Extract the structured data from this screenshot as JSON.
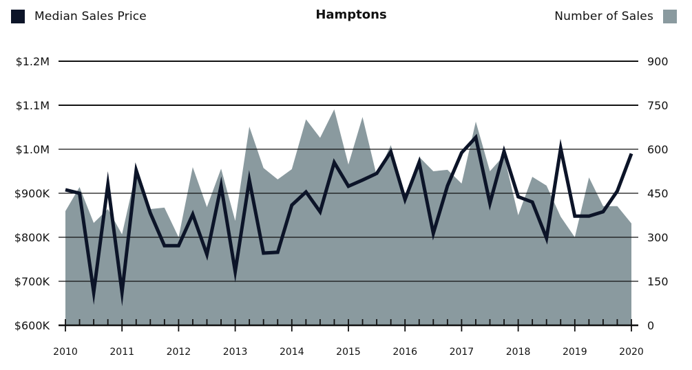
{
  "chart_data": {
    "type": "line+area",
    "title": "Hamptons",
    "xlabel": "",
    "ylabel_left": "Median Sales Price",
    "ylabel_right": "Number of Sales",
    "legend": [
      {
        "label": "Median Sales Price",
        "color": "#0c1428",
        "type": "line"
      },
      {
        "label": "Number of Sales",
        "color": "#8a9a9f",
        "type": "area"
      }
    ],
    "legend_position": "top",
    "grid": true,
    "y_left_ticks": [
      "$600K",
      "$700K",
      "$800K",
      "$900K",
      "$1.0M",
      "$1.1M",
      "$1.2M"
    ],
    "y_left_range": [
      600000,
      1200000
    ],
    "y_right_ticks": [
      "0",
      "150",
      "300",
      "450",
      "600",
      "750",
      "900"
    ],
    "y_right_range": [
      0,
      900
    ],
    "x_tick_labels": [
      "2010",
      "2011",
      "2012",
      "2013",
      "2014",
      "2015",
      "2016",
      "2017",
      "2018",
      "2019",
      "2020"
    ],
    "x": [
      "2010 Q1",
      "2010 Q2",
      "2010 Q3",
      "2010 Q4",
      "2011 Q1",
      "2011 Q2",
      "2011 Q3",
      "2011 Q4",
      "2012 Q1",
      "2012 Q2",
      "2012 Q3",
      "2012 Q4",
      "2013 Q1",
      "2013 Q2",
      "2013 Q3",
      "2013 Q4",
      "2014 Q1",
      "2014 Q2",
      "2014 Q3",
      "2014 Q4",
      "2015 Q1",
      "2015 Q2",
      "2015 Q3",
      "2015 Q4",
      "2016 Q1",
      "2016 Q2",
      "2016 Q3",
      "2016 Q4",
      "2017 Q1",
      "2017 Q2",
      "2017 Q3",
      "2017 Q4",
      "2018 Q1",
      "2018 Q2",
      "2018 Q3",
      "2018 Q4",
      "2019 Q1",
      "2019 Q2",
      "2019 Q3",
      "2019 Q4",
      "2020 Q1"
    ],
    "series": [
      {
        "name": "Median Sales Price",
        "axis": "left",
        "type": "line",
        "values": [
          908000,
          900000,
          675000,
          920000,
          675000,
          952000,
          855000,
          781000,
          781000,
          852000,
          761000,
          917000,
          722000,
          930000,
          764000,
          766000,
          873000,
          903000,
          858000,
          970000,
          916000,
          930000,
          945000,
          994000,
          886000,
          970000,
          809000,
          917000,
          992000,
          1027000,
          877000,
          995000,
          892000,
          880000,
          798000,
          1002000,
          848000,
          848000,
          858000,
          905000,
          990000
        ]
      },
      {
        "name": "Number of Sales",
        "axis": "right",
        "type": "area",
        "values": [
          389,
          471,
          349,
          396,
          310,
          525,
          396,
          401,
          300,
          539,
          403,
          534,
          356,
          677,
          536,
          497,
          532,
          702,
          639,
          736,
          548,
          710,
          509,
          614,
          441,
          574,
          525,
          530,
          483,
          694,
          525,
          579,
          375,
          506,
          476,
          370,
          300,
          504,
          406,
          406,
          347
        ]
      }
    ]
  }
}
